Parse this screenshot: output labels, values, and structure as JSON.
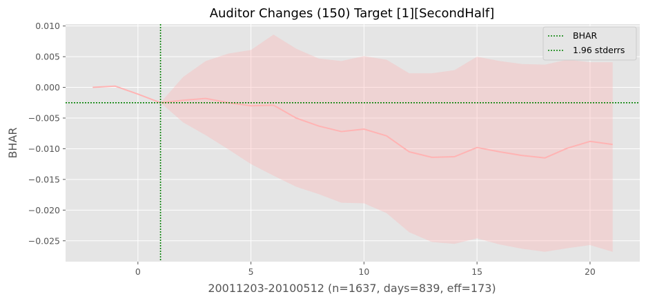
{
  "chart_data": {
    "type": "line",
    "title": "Auditor Changes (150) Target [1][SecondHalf]",
    "xlabel": "20011203-20100512 (n=1637, days=839, eff=173)",
    "ylabel": "BHAR",
    "xlim": [
      -3.2,
      22.2
    ],
    "ylim": [
      -0.0284,
      0.0103
    ],
    "grid": true,
    "xticks": [
      0,
      5,
      10,
      15,
      20
    ],
    "xtick_labels": [
      "0",
      "5",
      "10",
      "15",
      "20"
    ],
    "yticks": [
      0.01,
      0.005,
      0.0,
      -0.005,
      -0.01,
      -0.015,
      -0.02,
      -0.025
    ],
    "ytick_labels": [
      "0.010",
      "0.005",
      "0.000",
      "−0.005",
      "−0.010",
      "−0.015",
      "−0.020",
      "−0.025"
    ],
    "legend_position": "top-right",
    "legend": [
      {
        "label": "BHAR",
        "style": "dotted",
        "color": "#008000"
      },
      {
        "label": "1.96 stderrs",
        "style": "dotted",
        "color": "#008000"
      }
    ],
    "series": [
      {
        "name": "BHAR",
        "color": "#ffb3b3",
        "x": [
          -2,
          -1,
          0,
          1,
          2,
          3,
          4,
          5,
          6,
          7,
          8,
          9,
          10,
          11,
          12,
          13,
          14,
          15,
          16,
          17,
          18,
          19,
          20,
          21
        ],
        "values": [
          0.0,
          0.0002,
          -0.0011,
          -0.0025,
          -0.0021,
          -0.0018,
          -0.0025,
          -0.003,
          -0.0029,
          -0.005,
          -0.0063,
          -0.0072,
          -0.0068,
          -0.0079,
          -0.0105,
          -0.0114,
          -0.0113,
          -0.0098,
          -0.0105,
          -0.0111,
          -0.0115,
          -0.0099,
          -0.0088,
          -0.0093
        ]
      }
    ],
    "band": {
      "color": "#ffb3b3",
      "opacity": 0.35,
      "x": [
        1,
        2,
        3,
        4,
        5,
        6,
        7,
        8,
        9,
        10,
        11,
        12,
        13,
        14,
        15,
        16,
        17,
        18,
        19,
        20,
        21
      ],
      "upper": [
        -0.0025,
        0.0017,
        0.0043,
        0.0055,
        0.0061,
        0.0086,
        0.0063,
        0.0047,
        0.0043,
        0.0051,
        0.0045,
        0.0023,
        0.0023,
        0.0028,
        0.005,
        0.0043,
        0.0038,
        0.0037,
        0.0045,
        0.0041,
        0.0041
      ],
      "lower": [
        -0.0025,
        -0.0057,
        -0.0078,
        -0.0101,
        -0.0125,
        -0.0144,
        -0.0162,
        -0.0174,
        -0.0188,
        -0.0189,
        -0.0205,
        -0.0236,
        -0.0252,
        -0.0255,
        -0.0246,
        -0.0256,
        -0.0263,
        -0.0268,
        -0.0262,
        -0.0257,
        -0.0268
      ]
    },
    "vline": {
      "x": 1,
      "color": "#008000",
      "style": "dotted"
    },
    "hline": {
      "y": -0.0025,
      "color": "#008000",
      "style": "dotted"
    }
  }
}
